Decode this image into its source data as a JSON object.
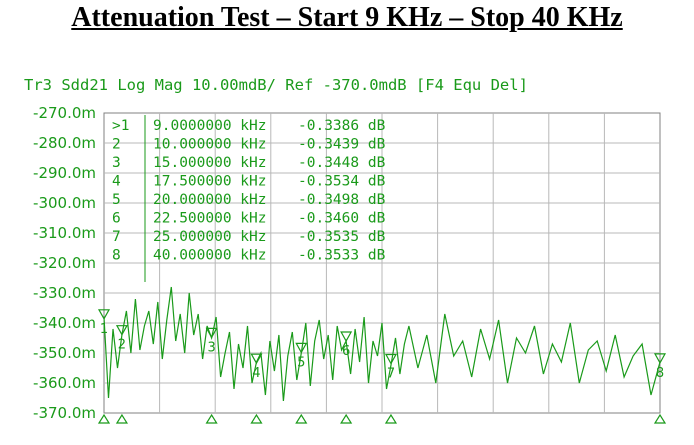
{
  "title": "Attenuation Test – Start 9 KHz – Stop 40 KHz",
  "chart_data": {
    "type": "line",
    "trace_header": "Tr3 Sdd21 Log Mag 10.00mdB/ Ref -370.0mdB [F4 Equ Del]",
    "y_ticks": [
      "-270.0m",
      "-280.0m",
      "-290.0m",
      "-300.0m",
      "-310.0m",
      "-320.0m",
      "-330.0m",
      "-340.0m",
      "-350.0m",
      "-360.0m",
      "-370.0m"
    ],
    "ylim": [
      -370,
      -270
    ],
    "xlim": [
      9,
      40
    ],
    "x_unit": "kHz",
    "y_unit": "mdB",
    "grid": true,
    "markers": [
      {
        "id": "1",
        "label": ">1",
        "freq": "9.0000000 kHz",
        "value": "-0.3386 dB",
        "x": 9.0,
        "y": -338.6
      },
      {
        "id": "2",
        "label": "2",
        "freq": "10.000000 kHz",
        "value": "-0.3439 dB",
        "x": 10.0,
        "y": -343.9
      },
      {
        "id": "3",
        "label": "3",
        "freq": "15.000000 kHz",
        "value": "-0.3448 dB",
        "x": 15.0,
        "y": -344.8
      },
      {
        "id": "4",
        "label": "4",
        "freq": "17.500000 kHz",
        "value": "-0.3534 dB",
        "x": 17.5,
        "y": -353.4
      },
      {
        "id": "5",
        "label": "5",
        "freq": "20.000000 kHz",
        "value": "-0.3498 dB",
        "x": 20.0,
        "y": -349.8
      },
      {
        "id": "6",
        "label": "6",
        "freq": "22.500000 kHz",
        "value": "-0.3460 dB",
        "x": 22.5,
        "y": -346.0
      },
      {
        "id": "7",
        "label": "7",
        "freq": "25.000000 kHz",
        "value": "-0.3535 dB",
        "x": 25.0,
        "y": -353.5
      },
      {
        "id": "8",
        "label": "8",
        "freq": "40.000000 kHz",
        "value": "-0.3533 dB",
        "x": 40.0,
        "y": -353.3
      }
    ],
    "series": [
      {
        "x": [
          9.0,
          9.25,
          9.5,
          9.75,
          10.0,
          10.25,
          10.5,
          10.75,
          11.0,
          11.25,
          11.5,
          11.75,
          12.0,
          12.25,
          12.5,
          12.75,
          13.0,
          13.25,
          13.5,
          13.75,
          14.0,
          14.25,
          14.5,
          14.75,
          15.0,
          15.25,
          15.5,
          15.75,
          16.0,
          16.25,
          16.5,
          16.75,
          17.0,
          17.25,
          17.5,
          17.75,
          18.0,
          18.25,
          18.5,
          18.75,
          19.0,
          19.25,
          19.5,
          19.75,
          20.0,
          20.25,
          20.5,
          20.75,
          21.0,
          21.25,
          21.5,
          21.75,
          22.0,
          22.25,
          22.5,
          22.75,
          23.0,
          23.25,
          23.5,
          23.75,
          24.0,
          24.25,
          24.5,
          24.75,
          25.0,
          25.25,
          25.5,
          25.75,
          26.0,
          26.5,
          27.0,
          27.5,
          28.0,
          28.5,
          29.0,
          29.5,
          30.0,
          30.5,
          31.0,
          31.5,
          32.0,
          32.5,
          33.0,
          33.5,
          34.0,
          34.5,
          35.0,
          35.5,
          36.0,
          36.5,
          37.0,
          37.5,
          38.0,
          38.5,
          39.0,
          39.5,
          40.0
        ],
        "y": [
          -338,
          -365,
          -342,
          -355,
          -344,
          -336,
          -350,
          -332,
          -349,
          -341,
          -336,
          -347,
          -333,
          -352,
          -339,
          -328,
          -346,
          -337,
          -350,
          -330,
          -344,
          -337,
          -352,
          -341,
          -345,
          -338,
          -358,
          -350,
          -343,
          -362,
          -347,
          -355,
          -341,
          -360,
          -353,
          -350,
          -364,
          -346,
          -356,
          -344,
          -366,
          -351,
          -343,
          -359,
          -350,
          -340,
          -361,
          -346,
          -339,
          -352,
          -344,
          -359,
          -341,
          -349,
          -346,
          -357,
          -342,
          -353,
          -338,
          -360,
          -346,
          -351,
          -340,
          -362,
          -354,
          -345,
          -357,
          -347,
          -341,
          -355,
          -344,
          -360,
          -337,
          -351,
          -346,
          -358,
          -342,
          -352,
          -339,
          -360,
          -345,
          -350,
          -341,
          -357,
          -347,
          -353,
          -340,
          -360,
          -349,
          -346,
          -356,
          -344,
          -358,
          -351,
          -347,
          -364,
          -353
        ]
      }
    ]
  }
}
